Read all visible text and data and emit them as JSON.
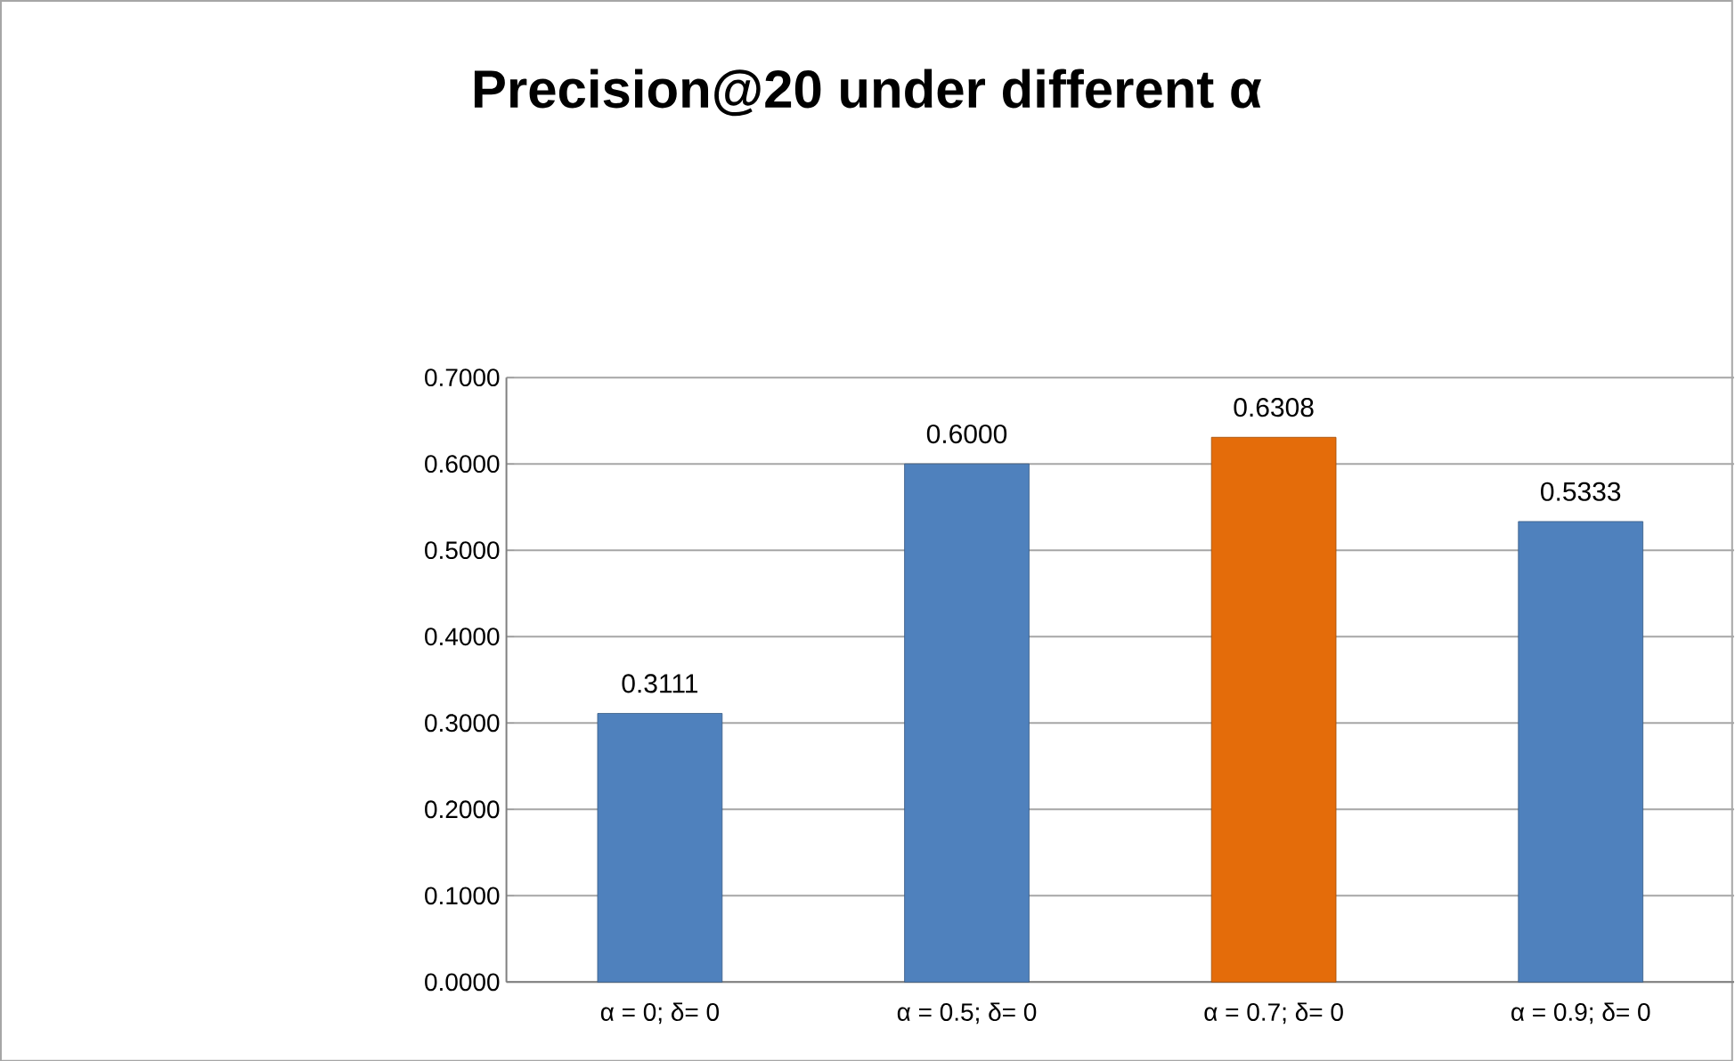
{
  "chart_data": {
    "type": "bar",
    "title": "Precision@20 under different α",
    "categories": [
      "α = 0; δ= 0",
      "α = 0.5; δ= 0",
      "α = 0.7; δ= 0",
      "α = 0.9; δ= 0"
    ],
    "values": [
      0.3111,
      0.6,
      0.6308,
      0.5333
    ],
    "value_labels": [
      "0.3111",
      "0.6000",
      "0.6308",
      "0.5333"
    ],
    "colors": [
      "#4f81bd",
      "#4f81bd",
      "#e46c0a",
      "#4f81bd"
    ],
    "ylim": [
      0,
      0.7
    ],
    "yticks": [
      {
        "value": 0,
        "label": "0.0000"
      },
      {
        "value": 0.1,
        "label": "0.1000"
      },
      {
        "value": 0.2,
        "label": "0.2000"
      },
      {
        "value": 0.3,
        "label": "0.3000"
      },
      {
        "value": 0.4,
        "label": "0.4000"
      },
      {
        "value": 0.5,
        "label": "0.5000"
      },
      {
        "value": 0.6,
        "label": "0.6000"
      },
      {
        "value": 0.7,
        "label": "0.7000"
      }
    ],
    "grid": true
  }
}
